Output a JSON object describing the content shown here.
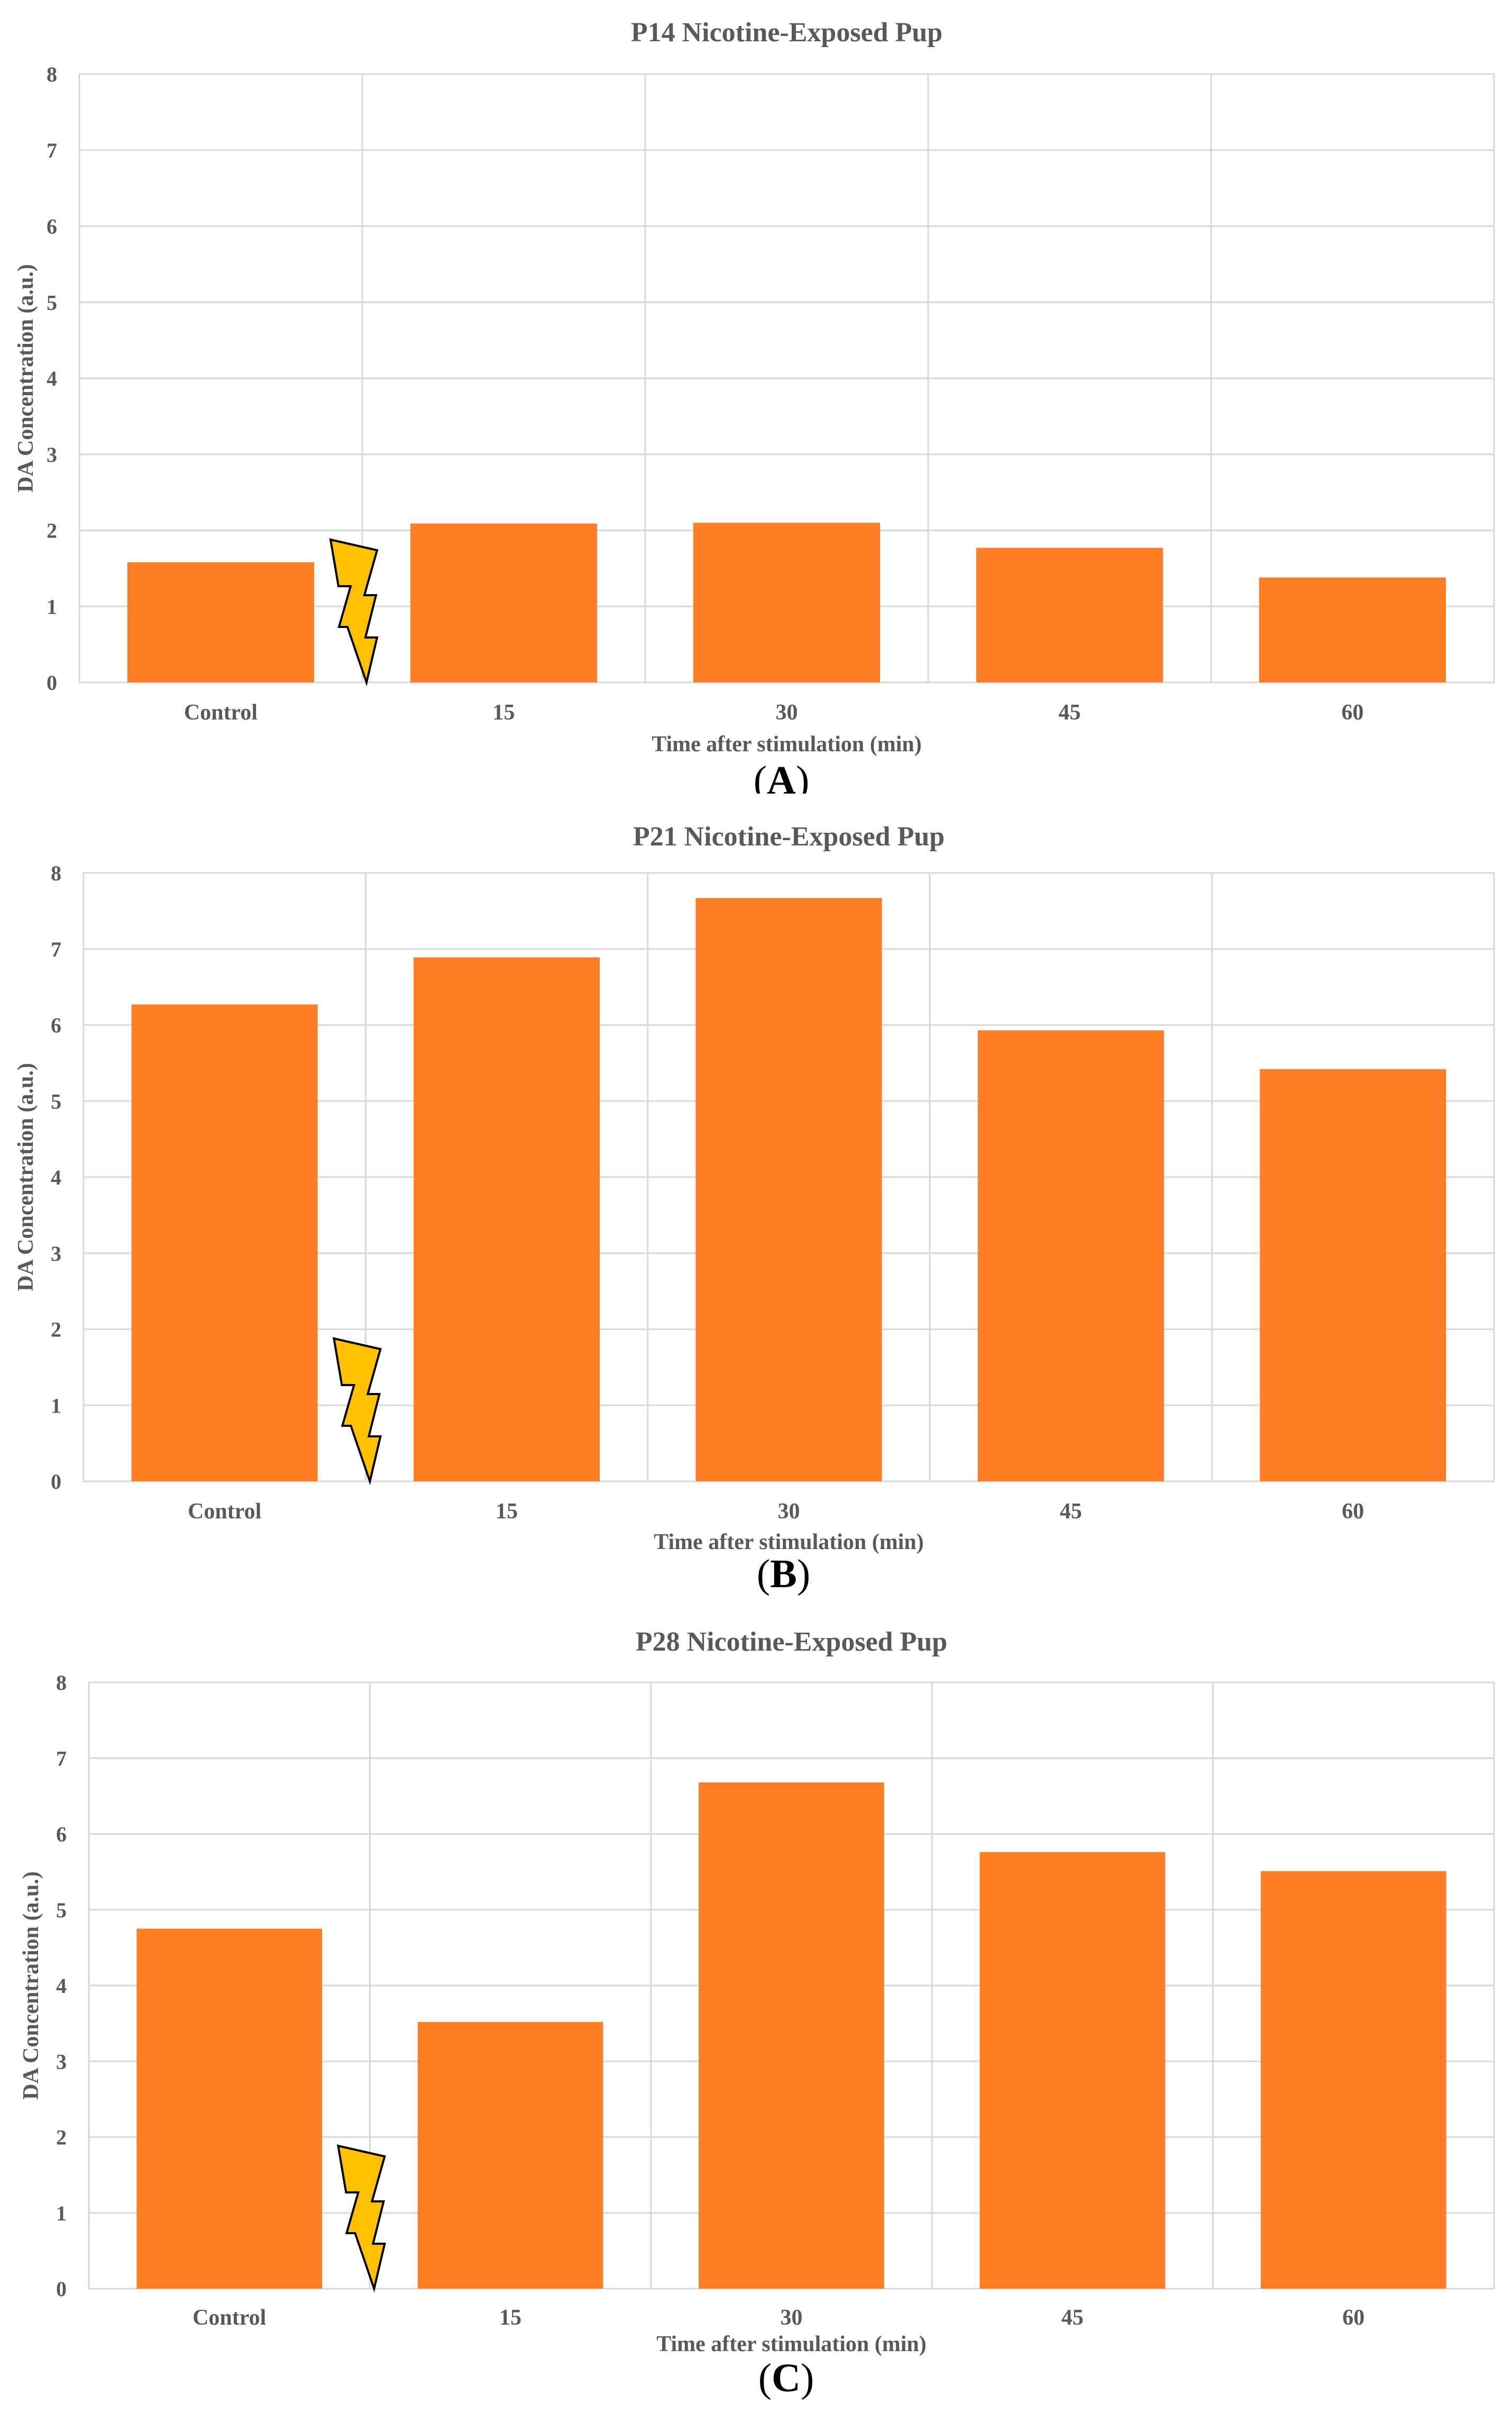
{
  "colors": {
    "bar": "#FD7E26",
    "bolt_fill": "#FFC000",
    "bolt_stroke": "#000000",
    "grid": "#D9D9D9",
    "text": "#595959"
  },
  "icons": {
    "stimulation": "lightning-bolt-icon"
  },
  "chart_data": [
    {
      "type": "bar",
      "title": "P14 Nicotine-Exposed Pup",
      "xlabel": "Time after stimulation (min)",
      "ylabel": "DA Concentration (a.u.)",
      "ylim": [
        0,
        8
      ],
      "yticks": [
        "0",
        "1",
        "2",
        "3",
        "4",
        "5",
        "6",
        "7",
        "8"
      ],
      "categories": [
        "Control",
        "15",
        "30",
        "45",
        "60"
      ],
      "values": [
        1.58,
        2.09,
        2.1,
        1.77,
        1.38
      ],
      "grid": true,
      "caption": {
        "open": "(",
        "letter": "A",
        "close": ")"
      }
    },
    {
      "type": "bar",
      "title": "P21 Nicotine-Exposed Pup",
      "xlabel": "Time after stimulation (min)",
      "ylabel": "DA Concentration (a.u.)",
      "ylim": [
        0,
        8
      ],
      "yticks": [
        "0",
        "1",
        "2",
        "3",
        "4",
        "5",
        "6",
        "7",
        "8"
      ],
      "categories": [
        "Control",
        "15",
        "30",
        "45",
        "60"
      ],
      "values": [
        6.27,
        6.89,
        7.67,
        5.93,
        5.42
      ],
      "grid": true,
      "caption": {
        "open": "(",
        "letter": "B",
        "close": ")"
      }
    },
    {
      "type": "bar",
      "title": "P28 Nicotine-Exposed Pup",
      "xlabel": "Time after stimulation (min)",
      "ylabel": "DA Concentration (a.u.)",
      "ylim": [
        0,
        8
      ],
      "yticks": [
        "0",
        "1",
        "2",
        "3",
        "4",
        "5",
        "6",
        "7",
        "8"
      ],
      "categories": [
        "Control",
        "15",
        "30",
        "45",
        "60"
      ],
      "values": [
        4.75,
        3.52,
        6.68,
        5.76,
        5.51
      ],
      "grid": true,
      "caption": {
        "open": "(",
        "letter": "C",
        "close": ")"
      }
    }
  ]
}
